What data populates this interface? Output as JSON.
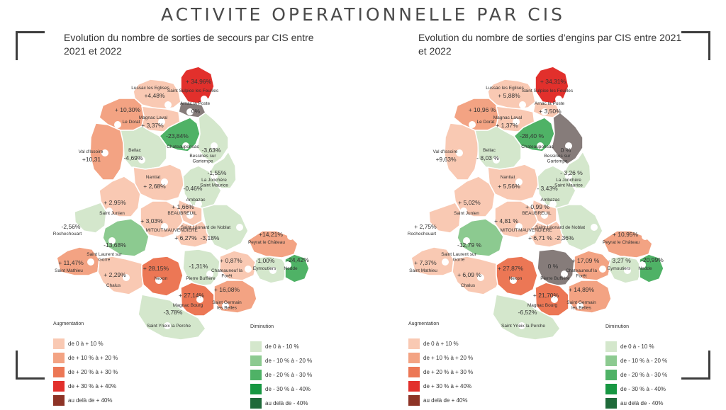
{
  "page_title": "ACTIVITE OPERATIONNELLE PAR CIS",
  "colors": {
    "inc_0_10": "#f9c9b3",
    "inc_10_20": "#f3a383",
    "inc_20_30": "#ec7755",
    "inc_30_40": "#e2302c",
    "inc_40plus": "#8d3326",
    "dec_0_10": "#d4e7cc",
    "dec_10_20": "#8cca90",
    "dec_20_30": "#4fb266",
    "dec_30_40": "#179742",
    "dec_40plus": "#1f6a3a",
    "no_change": "#867c7a",
    "borders": "#ffffff"
  },
  "legend": {
    "increase_title": "Augmentation",
    "increase_items": [
      "de 0 à + 10 %",
      "de + 10 % à + 20 %",
      "de + 20 % à + 30 %",
      "de + 30 % à + 40%",
      "au delà de + 40%"
    ],
    "decrease_title": "Diminution",
    "decrease_items": [
      "de 0 à - 10 %",
      "de - 10 % à - 20 %",
      "de - 20 % à - 30 %",
      "de - 30 % à - 40%",
      "au delà de - 40%"
    ]
  },
  "maps": [
    {
      "title": "Evolution du nombre de sorties de secours par CIS entre 2021 et 2022",
      "districts": [
        {
          "name": "Lussac les Eglises",
          "value": "+4,48%"
        },
        {
          "name": "Saint Sulpice les Feuilles",
          "value": "+ 34,96%"
        },
        {
          "name": "Arnac la Poste",
          "value": "0%"
        },
        {
          "name": "Le Dorat",
          "value": "+ 10,30%"
        },
        {
          "name": "Magnac Laval",
          "value": "+ 3,37%"
        },
        {
          "name": "Chateauponsac",
          "value": "-23,84%"
        },
        {
          "name": "Bessines sur Gartempe",
          "value": "-3,63%"
        },
        {
          "name": "Val d'Issoire",
          "value": "+10,31"
        },
        {
          "name": "Bellac",
          "value": "-4,69%"
        },
        {
          "name": "Nantiat",
          "value": "+ 2,68%"
        },
        {
          "name": "La Jonchère Saint Maurice",
          "value": "-1,55%"
        },
        {
          "name": "Ambazac",
          "value": "-0,46%"
        },
        {
          "name": "Saint Junien",
          "value": "+ 2,95%"
        },
        {
          "name": "BEAUBREUIL",
          "value": "+ 1,66%"
        },
        {
          "name": "MITOUT",
          "value": "+ 3,03%"
        },
        {
          "name": "MAUVENDIERE",
          "value": "+ 6,27%"
        },
        {
          "name": "Saint Léonard de Noblat",
          "value": "-3,18%"
        },
        {
          "name": "Rochechouart",
          "value": "-2,56%"
        },
        {
          "name": "Saint Laurent sur Gorre",
          "value": "-13,68%"
        },
        {
          "name": "Peyrat le Château",
          "value": "+14,21%"
        },
        {
          "name": "Saint Mathieu",
          "value": "+ 11,47%"
        },
        {
          "name": "Chalus",
          "value": "+ 2,29%"
        },
        {
          "name": "Nexon",
          "value": "+ 28,15%"
        },
        {
          "name": "Pierre Buffière",
          "value": "-1,31%"
        },
        {
          "name": "Chateauneuf la Forêt",
          "value": "+ 0,87%"
        },
        {
          "name": "Eymoutiers",
          "value": "-1,00%"
        },
        {
          "name": "Nedde",
          "value": "-24,42%"
        },
        {
          "name": "Magnac Bourg",
          "value": "+ 27,14%"
        },
        {
          "name": "Saint Germain les Belles",
          "value": "+ 16,08%"
        },
        {
          "name": "Saint Yrieix la Perche",
          "value": "-3,78%"
        }
      ]
    },
    {
      "title": "Evolution du nombre de sorties d’engins par CIS entre 2021 et 2022",
      "districts": [
        {
          "name": "Lussac les Eglises",
          "value": "+ 5,88%"
        },
        {
          "name": "Saint Sulpice les Feuilles",
          "value": "+ 34,31%"
        },
        {
          "name": "Arnac la Poste",
          "value": "+ 3,50%"
        },
        {
          "name": "Le Dorat",
          "value": "+ 10,96 %"
        },
        {
          "name": "Magnac Laval",
          "value": "+ 1,37%"
        },
        {
          "name": "Chateauponsac",
          "value": "-28,40 %"
        },
        {
          "name": "Bessines sur Gartempe",
          "value": "0 %"
        },
        {
          "name": "Val d'Issoire",
          "value": "+9,63%"
        },
        {
          "name": "Bellac",
          "value": "- 8,03 %"
        },
        {
          "name": "Nantiat",
          "value": "+ 5,56%"
        },
        {
          "name": "La Jonchère Saint Maurice",
          "value": "- 3,26 %"
        },
        {
          "name": "Ambazac",
          "value": "- 3,43%"
        },
        {
          "name": "Saint Junien",
          "value": "+ 5,02%"
        },
        {
          "name": "BEAUBREUIL",
          "value": "+ 0,99 %"
        },
        {
          "name": "MITOUT",
          "value": "+ 4,81 %"
        },
        {
          "name": "MAUVENDIERE",
          "value": "+ 6,71 %"
        },
        {
          "name": "Saint Léonard de Noblat",
          "value": "-2,36%"
        },
        {
          "name": "Rochechouart",
          "value": "+ 2,75%"
        },
        {
          "name": "Saint Laurent sur Gorre",
          "value": "-12,79 %"
        },
        {
          "name": "Peyrat le Château",
          "value": "+ 10,95%"
        },
        {
          "name": "Saint Mathieu",
          "value": "+ 7,37%"
        },
        {
          "name": "Chalus",
          "value": "+ 6,09 %"
        },
        {
          "name": "Nexon",
          "value": "+ 27,87%"
        },
        {
          "name": "Pierre Buffière",
          "value": "0 %"
        },
        {
          "name": "Chateauneuf la Forêt",
          "value": "+ 17,09 %"
        },
        {
          "name": "Eymoutiers",
          "value": "- 3,27 %"
        },
        {
          "name": "Nedde",
          "value": "-20,99%"
        },
        {
          "name": "Magnac Bourg",
          "value": "+ 21,70%"
        },
        {
          "name": "Saint Germain les Belles",
          "value": "+ 14,89%"
        },
        {
          "name": "Saint Yrieix la Perche",
          "value": "-6,52%"
        }
      ]
    }
  ]
}
